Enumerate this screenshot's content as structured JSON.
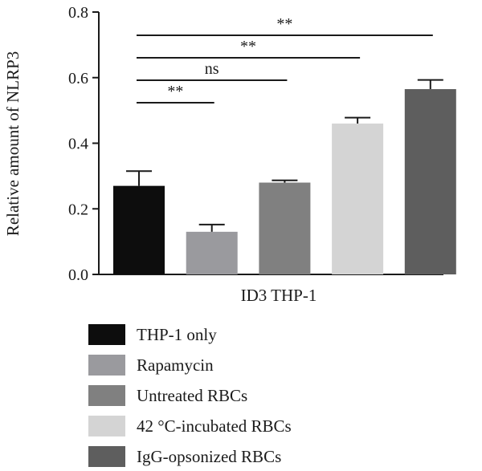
{
  "chart_data": {
    "type": "bar",
    "xlabel": "ID3 THP-1",
    "ylabel": "Relative amount of NLRP3",
    "ylim": [
      0,
      0.8
    ],
    "yticks": [
      "0.0",
      "0.2",
      "0.4",
      "0.6",
      "0.8"
    ],
    "categories": [
      "THP-1 only",
      "Rapamycin",
      "Untreated RBCs",
      "42 °C-incubated RBCs",
      "IgG-opsonized RBCs"
    ],
    "values": [
      0.27,
      0.13,
      0.28,
      0.46,
      0.565
    ],
    "errors": [
      0.045,
      0.022,
      0.007,
      0.018,
      0.028
    ],
    "colors": [
      "#0d0d0d",
      "#9a9a9e",
      "#808080",
      "#d4d4d4",
      "#5e5e5e"
    ],
    "grid": false,
    "legend_position": "bottom",
    "comparisons": [
      {
        "from": 0,
        "to": 4,
        "label": "**"
      },
      {
        "from": 0,
        "to": 3,
        "label": "**"
      },
      {
        "from": 0,
        "to": 2,
        "label": "ns"
      },
      {
        "from": 0,
        "to": 1,
        "label": "**"
      }
    ]
  }
}
